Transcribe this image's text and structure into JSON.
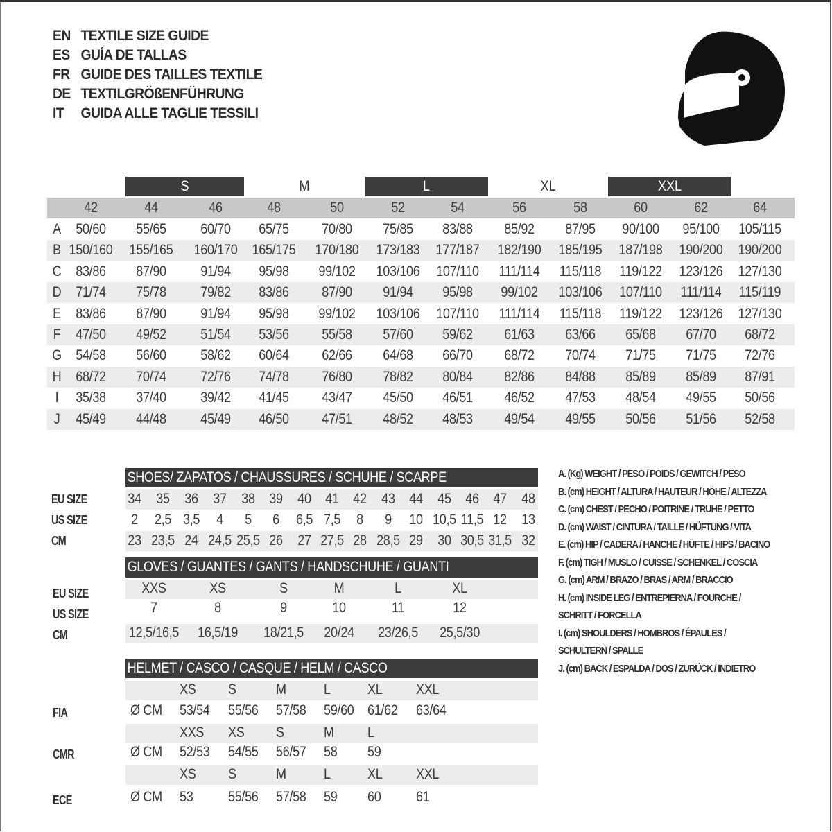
{
  "title_lines": [
    {
      "code": "EN",
      "text": "TEXTILE SIZE GUIDE"
    },
    {
      "code": "ES",
      "text": "GUÍA DE TALLAS"
    },
    {
      "code": "FR",
      "text": "GUIDE DES TAILLES TEXTILE"
    },
    {
      "code": "DE",
      "text": "TEXTILGRÖßENFÜHRUNG"
    },
    {
      "code": "IT",
      "text": "GUIDA ALLE TAGLIE TESSILI"
    }
  ],
  "icon": "helmet-icon",
  "colors": {
    "dark_band": "#3c3c3c",
    "gray_band": "#c8c8c8",
    "light_row": "#ececec"
  },
  "textile": {
    "letter_sizes": [
      "S",
      "M",
      "L",
      "XL",
      "XXL"
    ],
    "sizes": [
      "42",
      "44",
      "46",
      "48",
      "50",
      "52",
      "54",
      "56",
      "58",
      "60",
      "62",
      "64"
    ],
    "rows": [
      {
        "label": "A",
        "values": [
          "50/60",
          "55/65",
          "60/70",
          "65/75",
          "70/80",
          "75/85",
          "83/88",
          "85/92",
          "87/95",
          "90/100",
          "95/100",
          "105/115"
        ]
      },
      {
        "label": "B",
        "values": [
          "150/160",
          "155/165",
          "160/170",
          "165/175",
          "170/180",
          "173/183",
          "177/187",
          "182/190",
          "185/195",
          "187/198",
          "190/200",
          "190/200"
        ]
      },
      {
        "label": "C",
        "values": [
          "83/86",
          "87/90",
          "91/94",
          "95/98",
          "99/102",
          "103/106",
          "107/110",
          "111/114",
          "115/118",
          "119/122",
          "123/126",
          "127/130"
        ]
      },
      {
        "label": "D",
        "values": [
          "71/74",
          "75/78",
          "79/82",
          "83/86",
          "87/90",
          "91/94",
          "95/98",
          "99/102",
          "103/106",
          "107/110",
          "111/114",
          "115/119"
        ]
      },
      {
        "label": "E",
        "values": [
          "83/86",
          "87/90",
          "91/94",
          "95/98",
          "99/102",
          "103/106",
          "107/110",
          "111/114",
          "115/118",
          "119/122",
          "123/126",
          "127/130"
        ]
      },
      {
        "label": "F",
        "values": [
          "47/50",
          "49/52",
          "51/54",
          "53/56",
          "55/58",
          "57/60",
          "59/62",
          "61/63",
          "63/66",
          "65/68",
          "67/70",
          "68/72"
        ]
      },
      {
        "label": "G",
        "values": [
          "54/58",
          "56/60",
          "58/62",
          "60/64",
          "62/66",
          "64/68",
          "66/70",
          "68/72",
          "70/74",
          "71/75",
          "71/75",
          "72/76"
        ]
      },
      {
        "label": "H",
        "values": [
          "68/72",
          "70/74",
          "72/76",
          "74/78",
          "76/80",
          "78/82",
          "80/84",
          "82/86",
          "84/88",
          "85/89",
          "85/89",
          "87/91"
        ]
      },
      {
        "label": "I",
        "values": [
          "35/38",
          "37/40",
          "39/42",
          "41/45",
          "43/47",
          "45/50",
          "46/51",
          "46/52",
          "47/53",
          "48/54",
          "49/55",
          "50/56"
        ]
      },
      {
        "label": "J",
        "values": [
          "45/49",
          "44/48",
          "45/49",
          "46/50",
          "47/51",
          "48/52",
          "48/53",
          "49/54",
          "49/55",
          "50/56",
          "51/56",
          "52/58"
        ]
      }
    ]
  },
  "shoes": {
    "title": "SHOES/ ZAPATOS / CHAUSSURES / SCHUHE / SCARPE",
    "rows": [
      {
        "label": "EU SIZE",
        "values": [
          "34",
          "35",
          "36",
          "37",
          "38",
          "39",
          "40",
          "41",
          "42",
          "43",
          "44",
          "45",
          "46",
          "47",
          "48"
        ]
      },
      {
        "label": "US SIZE",
        "values": [
          "2",
          "2,5",
          "3,5",
          "4",
          "5",
          "6",
          "6,5",
          "7,5",
          "8",
          "9",
          "10",
          "10,5",
          "11,5",
          "12",
          "13"
        ]
      },
      {
        "label": "CM",
        "values": [
          "23",
          "23,5",
          "24",
          "24,5",
          "25,5",
          "26",
          "27",
          "27,5",
          "28",
          "28,5",
          "29",
          "30",
          "30,5",
          "31,5",
          "32"
        ]
      }
    ]
  },
  "gloves": {
    "title": "GLOVES / GUANTES / GANTS / HANDSCHUHE / GUANTI",
    "rows": [
      {
        "label": "EU SIZE",
        "values": [
          "XXS",
          "XS",
          "S",
          "M",
          "L",
          "XL"
        ]
      },
      {
        "label": "US SIZE",
        "values": [
          "7",
          "8",
          "9",
          "10",
          "11",
          "12"
        ]
      },
      {
        "label": "CM",
        "values": [
          "12,5/16,5",
          "16,5/19",
          "18/21,5",
          "20/24",
          "23/26,5",
          "25,5/30"
        ]
      }
    ]
  },
  "helmet": {
    "title": "HELMET / CASCO / CASQUE / HELM / CASCO",
    "unit": "Ø CM",
    "groups": [
      {
        "label": "FIA",
        "sizes": [
          "XS",
          "S",
          "M",
          "L",
          "XL",
          "XXL"
        ],
        "values": [
          "53/54",
          "55/56",
          "57/58",
          "59/60",
          "61/62",
          "63/64"
        ]
      },
      {
        "label": "CMR",
        "sizes": [
          "XXS",
          "XS",
          "S",
          "M",
          "L"
        ],
        "values": [
          "52/53",
          "54/55",
          "56/57",
          "58",
          "59"
        ]
      },
      {
        "label": "ECE",
        "sizes": [
          "XS",
          "S",
          "M",
          "L",
          "XL",
          "XXL"
        ],
        "values": [
          "53",
          "55/56",
          "57/58",
          "59",
          "60",
          "61"
        ]
      }
    ]
  },
  "legend": [
    "A. (Kg) WEIGHT / PESO / POIDS / GEWITCH / PESO",
    "B. (cm) HEIGHT / ALTURA / HAUTEUR / HÖHE / ALTEZZA",
    "C. (cm) CHEST / PECHO / POITRINE / TRUHE / PETTO",
    "D. (cm) WAIST / CINTURA / TAILLE / HÜFTUNG / VITA",
    "E. (cm) HIP / CADERA / HANCHE / HÜFTE / HIPS /  BACINO",
    "F.  (cm) TIGH / MUSLO / CUISSE / SCHENKEL / COSCIA",
    "G. (cm) ARM  / BRAZO / BRAS / ARM / BRACCIO",
    "H. (cm) INSIDE LEG / ENTREPIERNA / FOURCHE /",
    "SCHRITT / FORCELLA",
    "I.  (cm) SHOULDERS / HOMBROS / ÉPAULES /",
    "SCHULTERN / SPALLE",
    "J. (cm) BACK / ESPALDA / DOS / ZURÜCK / INDIETRO"
  ]
}
